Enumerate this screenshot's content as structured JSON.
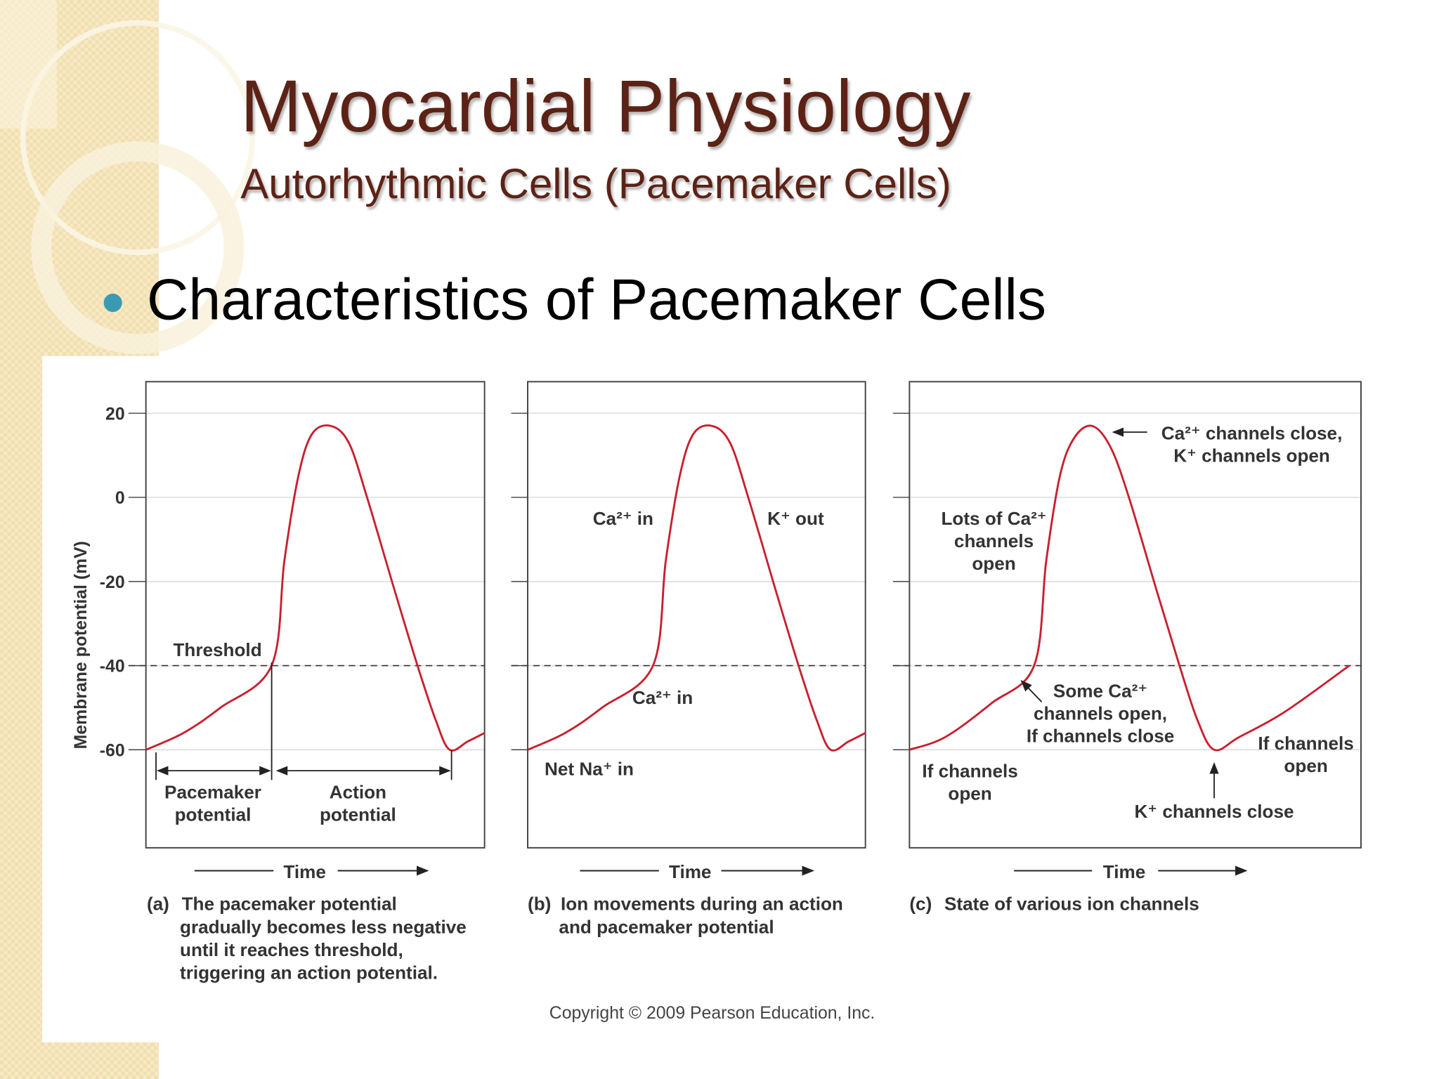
{
  "slide": {
    "title": "Myocardial Physiology",
    "subtitle": "Autorhythmic Cells (Pacemaker Cells)",
    "bullet": "Characteristics of Pacemaker Cells",
    "copyright": "Copyright © 2009 Pearson Education, Inc."
  },
  "chart_data": [
    {
      "type": "line",
      "color": "#c8202f",
      "xlim": [
        0,
        100
      ],
      "ylim": [
        -83.3,
        27.5
      ],
      "yticks": [
        20,
        0,
        -20,
        -40,
        -60
      ],
      "show_tick_labels": true,
      "grid": true,
      "threshold": -40,
      "x": [
        0,
        11.1,
        22,
        37.1,
        40.9,
        45,
        49,
        54.5,
        59.9,
        65.3,
        73.4,
        80.2,
        85.6,
        89.7,
        95.1,
        100
      ],
      "values": [
        -60,
        -56,
        -50,
        -40,
        -15,
        5,
        15,
        17,
        13,
        0,
        -22,
        -40,
        -53,
        -60,
        -58,
        -56
      ],
      "y_label": "Membrane potential (mV)",
      "x_label": "Time",
      "caption_label": "(a)",
      "caption": [
        "The pacemaker potential",
        "gradually becomes less negative",
        "until it reaches threshold,",
        "triggering an action potential."
      ],
      "annotations": [
        {
          "lines": [
            "Threshold"
          ]
        },
        {
          "lines": [
            "Pacemaker",
            "potential"
          ]
        },
        {
          "lines": [
            "Action",
            "potential"
          ]
        }
      ]
    },
    {
      "type": "line",
      "color": "#c8202f",
      "xlim": [
        0,
        100
      ],
      "ylim": [
        -83.3,
        27.5
      ],
      "yticks": [
        20,
        0,
        -20,
        -40,
        -60
      ],
      "show_tick_labels": false,
      "grid": true,
      "threshold": -40,
      "x": [
        0,
        11.1,
        22,
        37.1,
        40.9,
        45,
        49,
        54.5,
        59.9,
        65.3,
        73.4,
        80.2,
        85.6,
        89.7,
        95.1,
        100
      ],
      "values": [
        -60,
        -56,
        -50,
        -40,
        -15,
        5,
        15,
        17,
        13,
        0,
        -22,
        -40,
        -53,
        -60,
        -58,
        -56
      ],
      "x_label": "Time",
      "caption_label": "(b)",
      "caption": [
        "Ion movements during an action",
        "and pacemaker potential"
      ],
      "annotations": [
        {
          "lines": [
            "Ca²⁺ in"
          ]
        },
        {
          "lines": [
            "K⁺ out"
          ]
        },
        {
          "lines": [
            "Ca²⁺ in"
          ]
        },
        {
          "lines": [
            "Net Na⁺ in"
          ]
        }
      ]
    },
    {
      "type": "line",
      "color": "#c8202f",
      "xlim": [
        0,
        100
      ],
      "ylim": [
        -83.3,
        27.5
      ],
      "yticks": [
        20,
        0,
        -20,
        -40,
        -60
      ],
      "show_tick_labels": false,
      "grid": true,
      "threshold": -40,
      "x": [
        0,
        7.9,
        18.1,
        27.6,
        30.3,
        33.3,
        36.4,
        40.4,
        44.5,
        48.6,
        54.7,
        59.8,
        63.8,
        67.5,
        73.0,
        83.1,
        97.4
      ],
      "values": [
        -60,
        -57,
        -49,
        -40,
        -15,
        5,
        14,
        17,
        12,
        0,
        -22,
        -40,
        -53,
        -60,
        -57,
        -51,
        -40
      ],
      "x_label": "Time",
      "caption_label": "(c)",
      "caption": [
        "State of various ion channels"
      ],
      "annotations": [
        {
          "lines": [
            "Ca²⁺ channels close,",
            "K⁺ channels open"
          ]
        },
        {
          "lines": [
            "Lots of Ca²⁺",
            "channels",
            "open"
          ]
        },
        {
          "lines": [
            "Some Ca²⁺",
            "channels open,",
            "If channels close"
          ]
        },
        {
          "lines": [
            "If channels",
            "open"
          ]
        },
        {
          "lines": [
            "If channels",
            "open"
          ]
        },
        {
          "lines": [
            "K⁺ channels close"
          ]
        }
      ]
    }
  ]
}
